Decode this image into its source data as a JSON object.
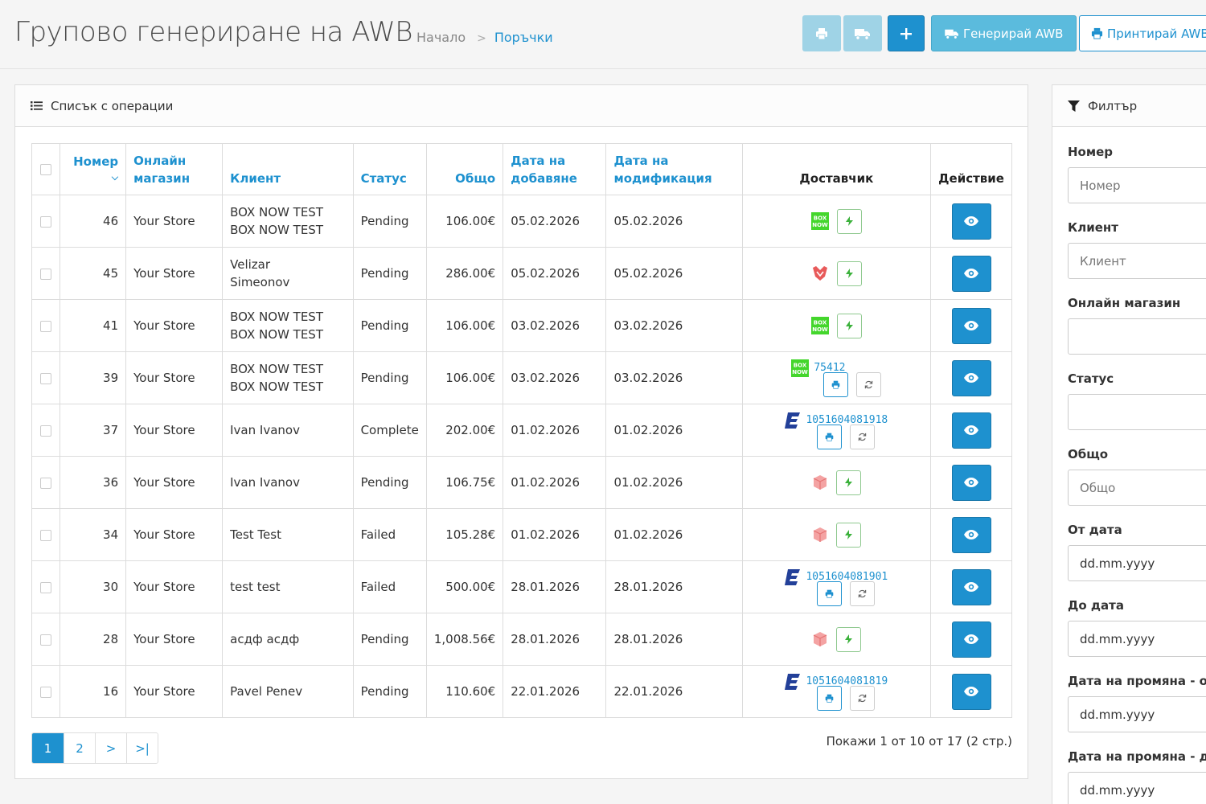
{
  "header": {
    "title": "Групово генериране на AWB",
    "breadcrumb_home": "Начало",
    "breadcrumb_current": "Поръчки",
    "generate_awb_label": "Генерирай AWB",
    "print_awb_label": "Принтирай AWB"
  },
  "list": {
    "heading": "Списък с операции",
    "columns": {
      "number": "Номер",
      "store": "Онлайн магазин",
      "customer": "Клиент",
      "status": "Статус",
      "total": "Общо",
      "date_added": "Дата на добавяне",
      "date_modified": "Дата на модификация",
      "carrier": "Доставчик",
      "action": "Действие"
    },
    "rows": [
      {
        "number": "46",
        "store": "Your Store",
        "customer": "BOX NOW TEST BOX NOW TEST",
        "status": "Pending",
        "total": "106.00€",
        "date_added": "05.02.2026",
        "date_modified": "05.02.2026",
        "carrier": "boxnow-icon",
        "awb": ""
      },
      {
        "number": "45",
        "store": "Your Store",
        "customer": "Velizar Simeonov",
        "status": "Pending",
        "total": "286.00€",
        "date_added": "05.02.2026",
        "date_modified": "05.02.2026",
        "carrier": "speedy-icon",
        "awb": ""
      },
      {
        "number": "41",
        "store": "Your Store",
        "customer": "BOX NOW TEST BOX NOW TEST",
        "status": "Pending",
        "total": "106.00€",
        "date_added": "03.02.2026",
        "date_modified": "03.02.2026",
        "carrier": "boxnow-icon",
        "awb": ""
      },
      {
        "number": "39",
        "store": "Your Store",
        "customer": "BOX NOW TEST BOX NOW TEST",
        "status": "Pending",
        "total": "106.00€",
        "date_added": "03.02.2026",
        "date_modified": "03.02.2026",
        "carrier": "boxnow-icon",
        "awb": "75412"
      },
      {
        "number": "37",
        "store": "Your Store",
        "customer": "Ivan Ivanov",
        "status": "Complete",
        "total": "202.00€",
        "date_added": "01.02.2026",
        "date_modified": "01.02.2026",
        "carrier": "econt-icon",
        "awb": "1051604081918"
      },
      {
        "number": "36",
        "store": "Your Store",
        "customer": "Ivan Ivanov",
        "status": "Pending",
        "total": "106.75€",
        "date_added": "01.02.2026",
        "date_modified": "01.02.2026",
        "carrier": "package-icon",
        "awb": ""
      },
      {
        "number": "34",
        "store": "Your Store",
        "customer": "Test Test",
        "status": "Failed",
        "total": "105.28€",
        "date_added": "01.02.2026",
        "date_modified": "01.02.2026",
        "carrier": "package-icon",
        "awb": ""
      },
      {
        "number": "30",
        "store": "Your Store",
        "customer": "test test",
        "status": "Failed",
        "total": "500.00€",
        "date_added": "28.01.2026",
        "date_modified": "28.01.2026",
        "carrier": "econt-icon",
        "awb": "1051604081901"
      },
      {
        "number": "28",
        "store": "Your Store",
        "customer": "асдф асдф",
        "status": "Pending",
        "total": "1,008.56€",
        "date_added": "28.01.2026",
        "date_modified": "28.01.2026",
        "carrier": "package-icon",
        "awb": ""
      },
      {
        "number": "16",
        "store": "Your Store",
        "customer": "Pavel Penev",
        "status": "Pending",
        "total": "110.60€",
        "date_added": "22.01.2026",
        "date_modified": "22.01.2026",
        "carrier": "econt-icon",
        "awb": "1051604081819"
      }
    ],
    "pagination": [
      "1",
      "2",
      ">",
      ">|"
    ],
    "pager_info": "Покажи 1 от 10 от 17 (2 стр.)"
  },
  "filter": {
    "heading": "Филтър",
    "fields": [
      {
        "label": "Номер",
        "placeholder": "Номер"
      },
      {
        "label": "Клиент",
        "placeholder": "Клиент"
      },
      {
        "label": "Онлайн магазин",
        "placeholder": ""
      },
      {
        "label": "Статус",
        "placeholder": ""
      },
      {
        "label": "Общо",
        "placeholder": "Общо"
      },
      {
        "label": "От дата",
        "placeholder": "dd.mm.yyyy"
      },
      {
        "label": "До дата",
        "placeholder": "dd.mm.yyyy"
      },
      {
        "label": "Дата на промяна - от",
        "placeholder": "dd.mm.yyyy"
      },
      {
        "label": "Дата на промяна - до",
        "placeholder": "dd.mm.yyyy"
      }
    ]
  },
  "colors": {
    "primary": "#1e91cf",
    "info": "#5bbbdd",
    "pale": "#9fd3e6",
    "boxnow": "#44d62c",
    "econt": "#234099",
    "package": "#f08a8a"
  }
}
